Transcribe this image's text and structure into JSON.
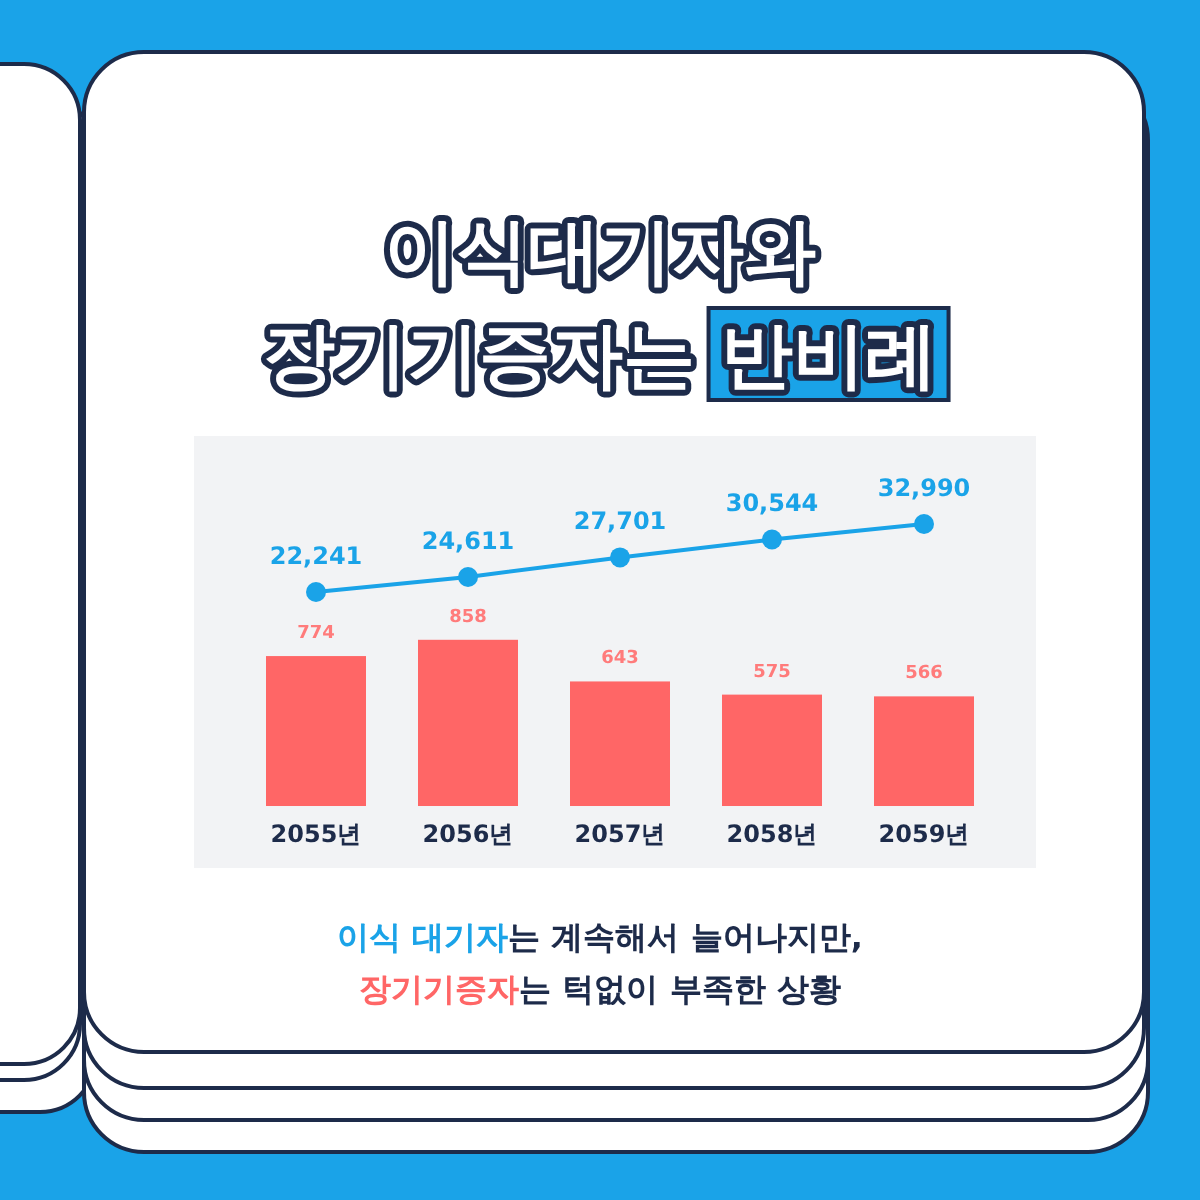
{
  "chart_data": {
    "type": "bar",
    "title": "이식대기자와 장기기증자는 **반비례**",
    "categories": [
      "2055년",
      "2056년",
      "2057년",
      "2058년",
      "2059년"
    ],
    "series": [
      {
        "color": "#ff6666",
        "values": [
          774,
          858,
          643,
          575,
          566
        ]
      },
      {
        "type": "line",
        "axis": "y2",
        "color": "#1aa3e8",
        "values": [
          22241,
          24611,
          27701,
          30544,
          32990
        ],
        "value_labels": [
          "22,241",
          "24,611",
          "27,701",
          "30,544",
          "32,990"
        ]
      }
    ],
    "ylim": [
      -320,
      1910
    ],
    "y2lim": [
      -21400,
      46900
    ],
    "marker": "circle",
    "data_labels": true,
    "annotations": [
      "**이식 대기자**는 계속해서 늘어나지만,",
      "**장기기증자**는 턱없이 부족한 상황"
    ]
  }
}
